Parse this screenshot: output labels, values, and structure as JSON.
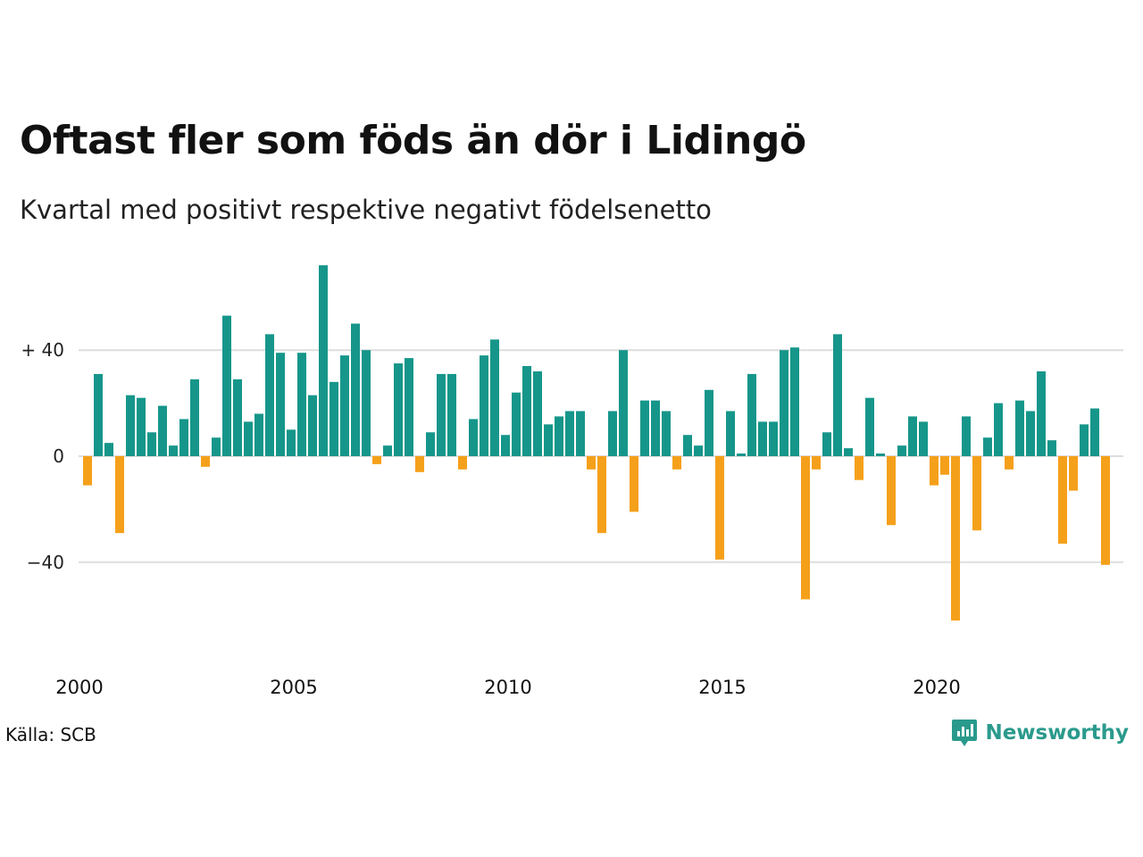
{
  "header": {
    "title": "Oftast fler som föds än dör i Lidingö",
    "subtitle": "Kvartal med positivt respektive negativt födelsenetto"
  },
  "footer": {
    "source": "Källa: SCB",
    "brand": "Newsworthy"
  },
  "colors": {
    "positive": "#16968a",
    "negative": "#f5a01a",
    "grid": "#dddddd",
    "brand": "#2a9a8c"
  },
  "chart_data": {
    "type": "bar",
    "title": "Oftast fler som föds än dör i Lidingö",
    "subtitle": "Kvartal med positivt respektive negativt födelsenetto",
    "xlabel": "",
    "ylabel": "",
    "ylim": [
      -72,
      72
    ],
    "xlim": [
      2000,
      2024.25
    ],
    "y_ticks": [
      {
        "value": 40,
        "label": "+ 40"
      },
      {
        "value": 0,
        "label": "0"
      },
      {
        "value": -40,
        "label": "−40"
      }
    ],
    "x_ticks": [
      {
        "value": 2000,
        "label": "2000"
      },
      {
        "value": 2005,
        "label": "2005"
      },
      {
        "value": 2010,
        "label": "2010"
      },
      {
        "value": 2015,
        "label": "2015"
      },
      {
        "value": 2020,
        "label": "2020"
      }
    ],
    "grid": true,
    "start_year": 2000,
    "values": [
      -11,
      31,
      5,
      -29,
      23,
      22,
      9,
      19,
      4,
      14,
      29,
      -4,
      7,
      53,
      29,
      13,
      16,
      46,
      39,
      10,
      39,
      23,
      72,
      28,
      38,
      50,
      40,
      -3,
      4,
      35,
      37,
      -6,
      9,
      31,
      31,
      -5,
      14,
      38,
      44,
      8,
      24,
      34,
      32,
      12,
      15,
      17,
      17,
      -5,
      -29,
      17,
      40,
      -21,
      21,
      21,
      17,
      -5,
      8,
      4,
      25,
      -39,
      17,
      1,
      31,
      13,
      13,
      40,
      41,
      -54,
      -5,
      9,
      46,
      3,
      -9,
      22,
      1,
      -26,
      4,
      15,
      13,
      -11,
      -7,
      -62,
      15,
      -28,
      7,
      20,
      -5,
      21,
      17,
      32,
      6,
      -33,
      -13,
      12,
      18,
      -41
    ]
  }
}
